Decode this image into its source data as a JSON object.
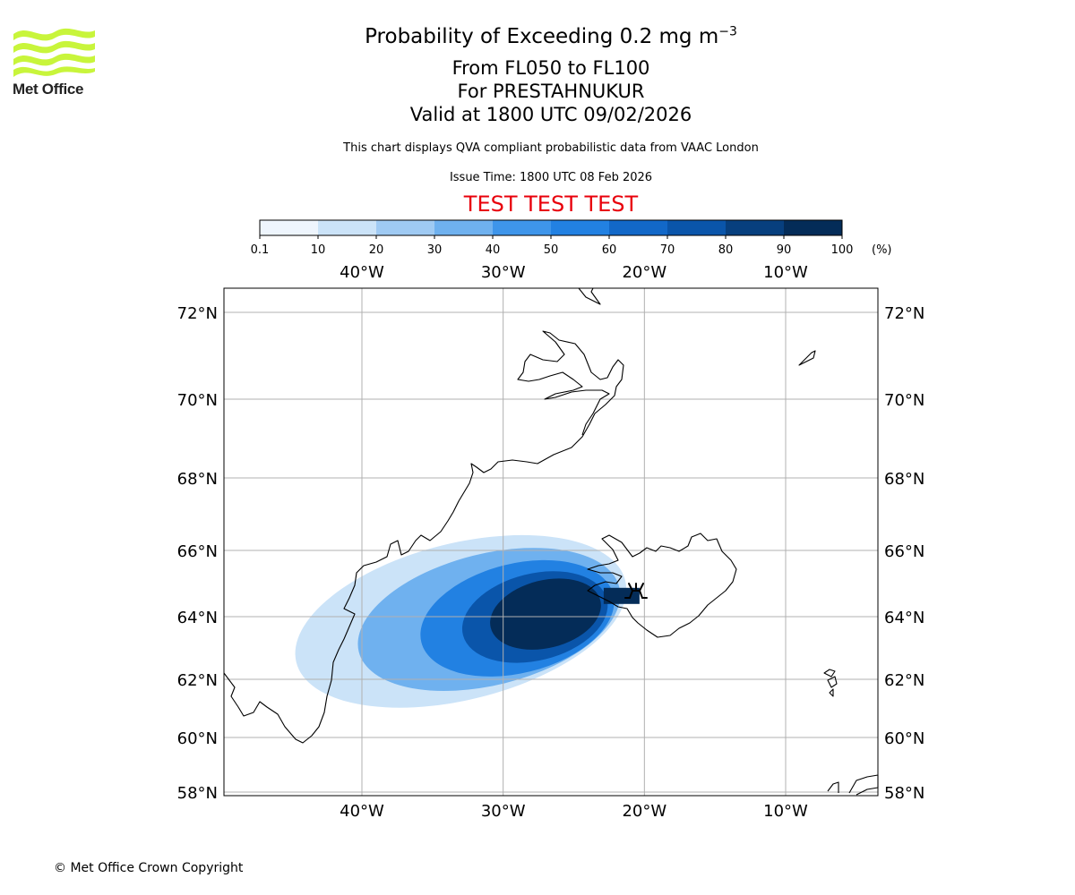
{
  "logo": {
    "text": "Met Office",
    "colors": [
      "#c8f53b",
      "#222222"
    ]
  },
  "header": {
    "title_main": "Probability of Exceeding 0.2 mg m",
    "title_sup": "−3",
    "level_range": "From FL050 to FL100",
    "location": "For PRESTAHNUKUR",
    "valid_time": "Valid at 1800 UTC 09/02/2026",
    "description": "This chart displays QVA compliant probabilistic data from VAAC London",
    "issue_time": "Issue Time: 1800 UTC 08 Feb 2026",
    "test_banner": "TEST TEST TEST"
  },
  "colorbar": {
    "ticks": [
      "0.1",
      "10",
      "20",
      "30",
      "40",
      "50",
      "60",
      "70",
      "80",
      "90",
      "100"
    ],
    "unit": "(%)",
    "colors": [
      "#eef5fd",
      "#cbe3f8",
      "#9fcaf3",
      "#6fb1ef",
      "#3e95ea",
      "#2281e2",
      "#1268c8",
      "#0a55aa",
      "#073f7e",
      "#042c58"
    ]
  },
  "map": {
    "lon_ticks": [
      "40°W",
      "30°W",
      "20°W",
      "10°W"
    ],
    "lat_ticks": [
      "72°N",
      "70°N",
      "68°N",
      "66°N",
      "64°N",
      "62°N",
      "60°N",
      "58°N"
    ],
    "volcano_marker": "volcano-symbol"
  },
  "chart_data": {
    "type": "heatmap",
    "title": "Probability of Exceeding 0.2 mg m−3",
    "variable": "probability (%)",
    "extent": {
      "lon": [
        -49.7,
        -3.6
      ],
      "lat": [
        57.9,
        72.6
      ]
    },
    "colorbar_levels": [
      0.1,
      10,
      20,
      30,
      40,
      50,
      60,
      70,
      80,
      90,
      100
    ],
    "plume": [
      {
        "class": 1,
        "lon": [
          -45.0,
          -21.0
        ],
        "lat": [
          61.3,
          66.2
        ]
      },
      {
        "class": 3,
        "lon": [
          -40.5,
          -21.5
        ],
        "lat": [
          61.8,
          65.9
        ]
      },
      {
        "class": 5,
        "lon": [
          -36.0,
          -22.0
        ],
        "lat": [
          62.2,
          65.6
        ]
      },
      {
        "class": 7,
        "lon": [
          -33.0,
          -22.5
        ],
        "lat": [
          62.6,
          65.3
        ]
      },
      {
        "class": 9,
        "lon": [
          -31.0,
          -23.0
        ],
        "lat": [
          63.0,
          65.1
        ]
      }
    ],
    "source": {
      "name": "PRESTAHNUKUR",
      "lon": -20.6,
      "lat": 64.6
    }
  },
  "footer": {
    "copyright": "© Met Office Crown Copyright"
  }
}
